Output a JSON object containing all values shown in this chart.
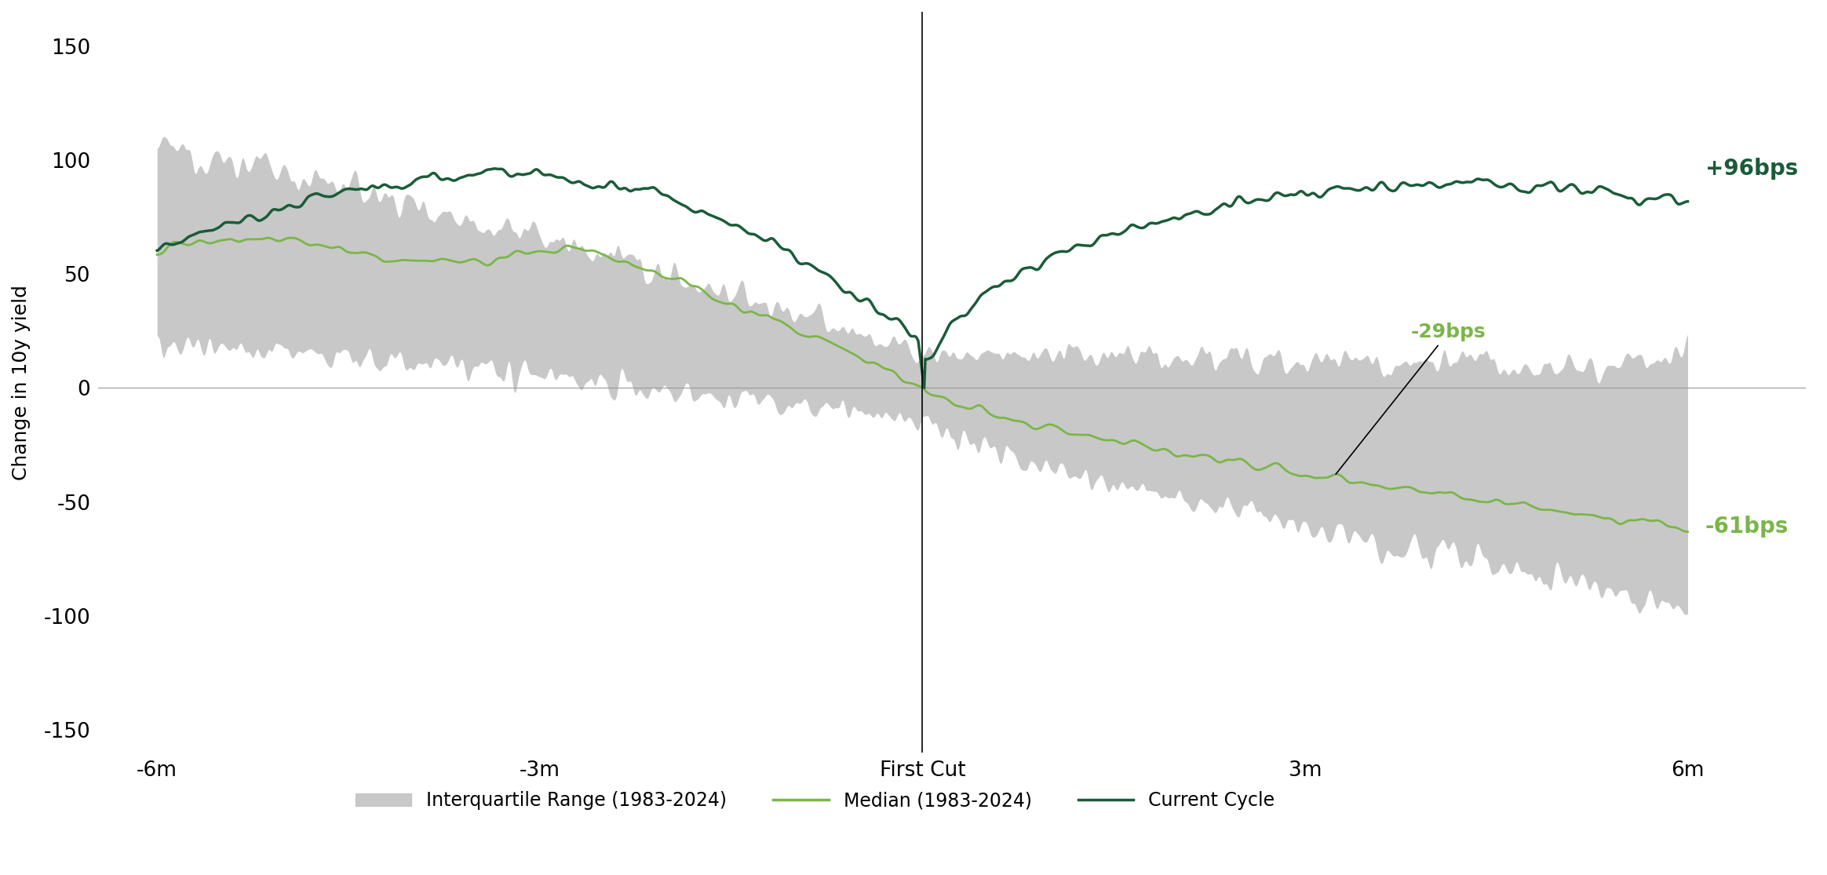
{
  "ylabel": "Change in 10y yield",
  "xtick_labels": [
    "-6m",
    "-3m",
    "First Cut",
    "3m",
    "6m"
  ],
  "yticks": [
    -150,
    -100,
    -50,
    0,
    50,
    100,
    150
  ],
  "annotation_current_end": "+96bps",
  "annotation_median_end": "-61bps",
  "annotation_median_point": "-29bps",
  "color_iqr": "#c8c8c8",
  "color_median": "#7ab648",
  "color_current": "#1a5c38",
  "color_annotation_current": "#1a5c38",
  "color_annotation_median": "#7ab648",
  "legend_iqr": "Interquartile Range (1983-2024)",
  "legend_median": "Median (1983-2024)",
  "legend_current": "Current Cycle"
}
